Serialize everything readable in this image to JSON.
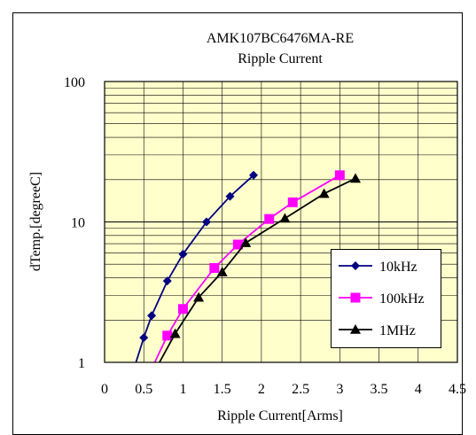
{
  "chart_data": {
    "type": "line",
    "title": "AMK107BC6476MA-RE",
    "subtitle": "Ripple Current",
    "xlabel": "Ripple Current[Arms]",
    "ylabel": "dTemp.[degreeC]",
    "xlim": [
      0,
      4.5
    ],
    "ylim": [
      1,
      100
    ],
    "yscale": "log",
    "x_ticks": [
      "0",
      "0.5",
      "1",
      "1.5",
      "2",
      "2.5",
      "3",
      "3.5",
      "4",
      "4.5"
    ],
    "y_ticks": [
      "1",
      "10",
      "100"
    ],
    "grid": true,
    "legend_position": "right",
    "plot_background": "#ffffcc",
    "series": [
      {
        "name": "10kHz",
        "color": "#000080",
        "marker": "diamond",
        "x": [
          0.5,
          0.6,
          0.8,
          1.0,
          1.3,
          1.6,
          1.9
        ],
        "y": [
          1.5,
          2.15,
          3.8,
          5.9,
          10.0,
          15.2,
          21.5
        ],
        "curve_x": [
          0.4,
          0.5,
          0.6,
          0.8,
          1.0,
          1.3,
          1.6,
          1.9
        ],
        "curve_y": [
          1.0,
          1.5,
          2.15,
          3.8,
          5.9,
          10.0,
          15.2,
          21.5
        ]
      },
      {
        "name": "100kHz",
        "color": "#ff00ff",
        "marker": "square",
        "x": [
          0.8,
          1.0,
          1.4,
          1.7,
          2.1,
          2.4,
          3.0
        ],
        "y": [
          1.55,
          2.4,
          4.7,
          6.9,
          10.5,
          13.8,
          21.5
        ],
        "curve_x": [
          0.64,
          0.8,
          1.0,
          1.4,
          1.7,
          2.1,
          2.4,
          3.0
        ],
        "curve_y": [
          1.0,
          1.55,
          2.4,
          4.7,
          6.9,
          10.5,
          13.8,
          21.5
        ]
      },
      {
        "name": "1MHz",
        "color": "#000000",
        "marker": "triangle",
        "x": [
          0.9,
          1.2,
          1.5,
          1.8,
          2.3,
          2.8,
          3.2
        ],
        "y": [
          1.6,
          2.9,
          4.4,
          7.1,
          10.6,
          15.9,
          20.4
        ],
        "curve_x": [
          0.7,
          0.9,
          1.2,
          1.5,
          1.8,
          2.3,
          2.8,
          3.2
        ],
        "curve_y": [
          1.0,
          1.6,
          2.9,
          4.4,
          7.1,
          10.6,
          15.9,
          20.4
        ]
      }
    ]
  }
}
